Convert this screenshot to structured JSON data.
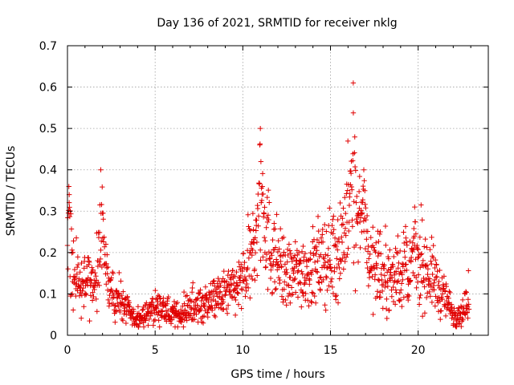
{
  "chart_data": {
    "type": "scatter",
    "title": "Day 136 of 2021, SRMTID for receiver nklg",
    "xlabel": "GPS time / hours",
    "ylabel": "SRMTID / TECUs",
    "xlim": [
      0,
      24
    ],
    "ylim": [
      0,
      0.7
    ],
    "xticks": [
      0,
      5,
      10,
      15,
      20
    ],
    "xtick_labels": [
      "0",
      "5",
      "10",
      "15",
      "20"
    ],
    "yticks": [
      0,
      0.1,
      0.2,
      0.3,
      0.4,
      0.5,
      0.6,
      0.7
    ],
    "ytick_labels": [
      "0",
      "0.1",
      "0.2",
      "0.3",
      "0.4",
      "0.5",
      "0.6",
      "0.7"
    ],
    "grid": true,
    "marker": "+",
    "color": "#e00000",
    "envelope": {
      "description": "Approximate median SRMTID (TECU) vs GPS time (hours); individual samples scatter around it",
      "time_hours": [
        0.0,
        0.2,
        0.5,
        0.8,
        1.2,
        1.5,
        1.8,
        2.0,
        2.3,
        2.6,
        3.0,
        3.4,
        3.8,
        4.0,
        4.5,
        5.0,
        5.5,
        6.0,
        6.5,
        7.0,
        7.5,
        8.0,
        8.5,
        9.0,
        9.5,
        10.0,
        10.4,
        10.7,
        11.0,
        11.2,
        11.5,
        11.8,
        12.2,
        12.6,
        13.0,
        13.5,
        14.0,
        14.5,
        15.0,
        15.5,
        15.8,
        16.1,
        16.4,
        16.7,
        17.0,
        17.3,
        17.7,
        18.0,
        18.5,
        19.0,
        19.5,
        20.0,
        20.5,
        21.0,
        21.3,
        21.7,
        22.0,
        22.3,
        22.6,
        22.9
      ],
      "srmtid_tecu": [
        0.16,
        0.2,
        0.14,
        0.11,
        0.15,
        0.1,
        0.16,
        0.23,
        0.12,
        0.09,
        0.09,
        0.06,
        0.04,
        0.04,
        0.05,
        0.07,
        0.06,
        0.05,
        0.05,
        0.06,
        0.07,
        0.08,
        0.09,
        0.1,
        0.11,
        0.13,
        0.16,
        0.24,
        0.3,
        0.27,
        0.22,
        0.19,
        0.16,
        0.14,
        0.15,
        0.16,
        0.16,
        0.17,
        0.19,
        0.21,
        0.26,
        0.3,
        0.28,
        0.26,
        0.22,
        0.17,
        0.15,
        0.14,
        0.14,
        0.15,
        0.17,
        0.18,
        0.16,
        0.13,
        0.1,
        0.08,
        0.05,
        0.05,
        0.06,
        0.08
      ]
    },
    "peaks": [
      {
        "time_hours": 0.1,
        "srmtid_tecu": 0.34
      },
      {
        "time_hours": 1.9,
        "srmtid_tecu": 0.4
      },
      {
        "time_hours": 11.0,
        "srmtid_tecu": 0.5
      },
      {
        "time_hours": 16.3,
        "srmtid_tecu": 0.61
      },
      {
        "time_hours": 16.9,
        "srmtid_tecu": 0.4
      },
      {
        "time_hours": 19.8,
        "srmtid_tecu": 0.31
      }
    ]
  }
}
